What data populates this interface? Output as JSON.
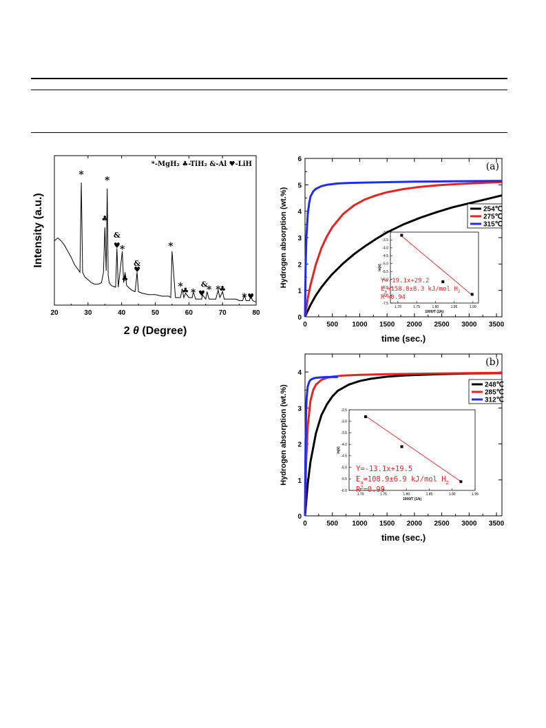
{
  "chart_data": [
    {
      "id": "xrd",
      "type": "line",
      "xlabel_prefix": "2",
      "xlabel_theta": "θ",
      "xlabel_suffix": "(Degree)",
      "ylabel": "Intensity (a.u.)",
      "xlim": [
        20,
        80
      ],
      "ylim": [
        0,
        100
      ],
      "xticks": [
        20,
        30,
        40,
        50,
        60,
        70,
        80
      ],
      "legend_text": "*-MgH₂ ♣-TiH₂ &-Al ♥-LiH",
      "series": [
        {
          "x": [
            20,
            21,
            22,
            23,
            24,
            25,
            26,
            27,
            27.6,
            28,
            28.4,
            29,
            30,
            31,
            32,
            33,
            34,
            34.6,
            35,
            35.4,
            35.7,
            36,
            36.3,
            37,
            38.2,
            38.6,
            39,
            40.2,
            40.6,
            41,
            41.5,
            42,
            43,
            44,
            44.6,
            45,
            46,
            48,
            50,
            52,
            54,
            54.6,
            55,
            56,
            57.5,
            58,
            58.5,
            59,
            60,
            61,
            61.3,
            62,
            63,
            63.8,
            64,
            65,
            65.4,
            66,
            67,
            68,
            68.7,
            69.2,
            70,
            70.5,
            71,
            72,
            73,
            74,
            75,
            76,
            76.5,
            77,
            78,
            78.4,
            79,
            80
          ],
          "y": [
            43,
            45,
            43,
            40,
            36,
            32,
            27,
            24,
            22,
            82,
            22,
            19,
            17,
            15,
            14,
            14,
            15,
            22,
            52,
            23,
            78,
            20,
            15,
            13,
            12,
            38,
            12,
            36,
            15,
            22,
            13,
            12,
            10,
            9,
            22,
            9,
            8,
            7,
            7,
            6,
            6,
            5,
            36,
            5,
            5,
            11,
            5,
            8,
            5,
            5,
            9,
            4,
            4,
            4,
            7,
            4,
            9,
            4,
            4,
            4,
            10,
            5,
            9,
            4,
            4,
            4,
            4,
            4,
            3,
            3,
            7,
            3,
            3,
            6,
            3,
            2
          ]
        }
      ],
      "annotations": [
        {
          "text": "*",
          "x": 28.0,
          "y": 89
        },
        {
          "text": "*",
          "x": 35.7,
          "y": 85
        },
        {
          "text": "♣",
          "x": 35.0,
          "y": 58
        },
        {
          "text": "&",
          "x": 38.6,
          "y": 47
        },
        {
          "text": "♥",
          "x": 38.6,
          "y": 40
        },
        {
          "text": "*",
          "x": 40.2,
          "y": 39
        },
        {
          "text": "&",
          "x": 44.6,
          "y": 28
        },
        {
          "text": "♥",
          "x": 44.6,
          "y": 24
        },
        {
          "text": "♣",
          "x": 41.0,
          "y": 18
        },
        {
          "text": "*",
          "x": 54.6,
          "y": 41
        },
        {
          "text": "*",
          "x": 57.5,
          "y": 14
        },
        {
          "text": "♣",
          "x": 59.0,
          "y": 10
        },
        {
          "text": "*",
          "x": 61.3,
          "y": 10
        },
        {
          "text": "♥",
          "x": 63.8,
          "y": 8
        },
        {
          "text": "&",
          "x": 64.6,
          "y": 14
        },
        {
          "text": "*",
          "x": 66.0,
          "y": 12
        },
        {
          "text": "*",
          "x": 68.7,
          "y": 12
        },
        {
          "text": "♣",
          "x": 70.0,
          "y": 11
        },
        {
          "text": "*",
          "x": 76.5,
          "y": 7
        },
        {
          "text": "♥",
          "x": 78.4,
          "y": 6
        }
      ]
    },
    {
      "id": "a",
      "type": "line",
      "panel_label": "(a)",
      "xlabel": "time (sec.)",
      "ylabel": "Hydrogen absorption (wt.%)",
      "xlim": [
        0,
        3600
      ],
      "ylim": [
        0,
        6
      ],
      "xticks": [
        0,
        500,
        1000,
        1500,
        2000,
        2500,
        3000,
        3500
      ],
      "yticks": [
        0,
        1,
        2,
        3,
        4,
        5,
        6
      ],
      "legend": "top-right",
      "series": [
        {
          "name": "254℃",
          "color": "#000000",
          "x": [
            0,
            100,
            200,
            300,
            400,
            500,
            700,
            900,
            1100,
            1300,
            1500,
            1800,
            2100,
            2400,
            2700,
            3000,
            3300,
            3600
          ],
          "y": [
            0,
            0.45,
            0.82,
            1.12,
            1.38,
            1.62,
            2.03,
            2.38,
            2.68,
            2.95,
            3.2,
            3.5,
            3.75,
            3.96,
            4.15,
            4.3,
            4.45,
            4.6
          ]
        },
        {
          "name": "275℃",
          "color": "#e8221f",
          "x": [
            0,
            50,
            100,
            200,
            300,
            400,
            500,
            700,
            900,
            1100,
            1300,
            1500,
            1800,
            2100,
            2400,
            2700,
            3000,
            3300,
            3600
          ],
          "y": [
            0,
            0.7,
            1.2,
            2.0,
            2.6,
            3.05,
            3.4,
            3.9,
            4.23,
            4.45,
            4.6,
            4.72,
            4.84,
            4.92,
            4.98,
            5.02,
            5.05,
            5.08,
            5.1
          ]
        },
        {
          "name": "315℃",
          "color": "#1f2bf0",
          "x": [
            0,
            10,
            25,
            50,
            75,
            100,
            150,
            200,
            300,
            400,
            600,
            800,
            1000,
            1500,
            2000,
            2500,
            3000,
            3600
          ],
          "y": [
            0,
            1.8,
            3.0,
            3.9,
            4.3,
            4.55,
            4.75,
            4.85,
            4.95,
            5.0,
            5.05,
            5.07,
            5.08,
            5.1,
            5.12,
            5.13,
            5.14,
            5.15
          ]
        }
      ],
      "inset": {
        "xlim": [
          1.68,
          1.915
        ],
        "ylim": [
          -7.5,
          -3.0
        ],
        "xticks": [
          1.7,
          1.75,
          1.8,
          1.85,
          1.9
        ],
        "xticklabels": [
          "1.70",
          "1.75",
          "1.80",
          "1.85",
          "1.90"
        ],
        "yticks": [
          -3.0,
          -3.5,
          -4.0,
          -4.5,
          -5.0,
          -5.5,
          -6.0,
          -6.5,
          -7.0,
          -7.5
        ],
        "yticklabels": [
          "-3.0",
          "-3.5",
          "-4.0",
          "-4.5",
          "-5.0",
          "-5.5",
          "-6.0",
          "-6.5",
          "-7.0",
          "-7.5"
        ],
        "xlabel": "1000/T (1/k)",
        "ylabel": "ln(k)",
        "points": {
          "x": [
            1.71,
            1.82,
            1.898
          ],
          "y": [
            -3.2,
            -6.15,
            -6.95
          ]
        },
        "fit": {
          "x": [
            1.71,
            1.898
          ],
          "y": [
            -3.25,
            -7.0
          ]
        },
        "text_lines": [
          {
            "pre": "Y=-19.1x+29.2",
            "mid": "",
            "post": ""
          },
          {
            "pre": "E",
            "sub": "a",
            "mid": "=158.8±8.3 kJ/mol H",
            "sub2": "2"
          },
          {
            "pre": "R",
            "sup": "2",
            "mid": "=0.94"
          }
        ]
      }
    },
    {
      "id": "b",
      "type": "line",
      "panel_label": "(b)",
      "xlabel": "time (sec.)",
      "ylabel": "Hydrogen absorption (wt.%)",
      "xlim": [
        0,
        3600
      ],
      "ylim": [
        0,
        4.5
      ],
      "xticks": [
        0,
        500,
        1000,
        1500,
        2000,
        2500,
        3000,
        3500
      ],
      "yticks": [
        0,
        1,
        2,
        3,
        4
      ],
      "legend": "top-right",
      "series": [
        {
          "name": "248℃",
          "color": "#000000",
          "x": [
            0,
            50,
            100,
            200,
            300,
            400,
            500,
            600,
            800,
            1000,
            1200,
            1500,
            1800,
            2100,
            2500,
            3000,
            3600
          ],
          "y": [
            0,
            0.9,
            1.5,
            2.3,
            2.8,
            3.1,
            3.32,
            3.48,
            3.65,
            3.75,
            3.81,
            3.87,
            3.9,
            3.92,
            3.94,
            3.96,
            3.97
          ]
        },
        {
          "name": "285℃",
          "color": "#e8221f",
          "x": [
            0,
            20,
            50,
            100,
            150,
            200,
            300,
            400,
            500,
            700,
            1000,
            1500,
            2000,
            2500,
            3000,
            3600
          ],
          "y": [
            0,
            1.5,
            2.5,
            3.2,
            3.5,
            3.65,
            3.78,
            3.84,
            3.87,
            3.9,
            3.92,
            3.94,
            3.95,
            3.96,
            3.97,
            3.98
          ]
        },
        {
          "name": "312℃",
          "color": "#1f2bf0",
          "x": [
            0,
            5,
            10,
            20,
            30,
            50,
            75,
            100,
            150,
            200,
            300,
            400,
            500,
            600
          ],
          "y": [
            0,
            1.2,
            2.0,
            2.9,
            3.3,
            3.6,
            3.72,
            3.78,
            3.82,
            3.84,
            3.85,
            3.86,
            3.86,
            3.86
          ]
        }
      ],
      "inset": {
        "xlim": [
          1.675,
          1.95
        ],
        "ylim": [
          -6.0,
          -2.5
        ],
        "xticks": [
          1.7,
          1.75,
          1.8,
          1.85,
          1.9,
          1.95
        ],
        "xticklabels": [
          "1.70",
          "1.75",
          "1.80",
          "1.85",
          "1.90",
          "1.95"
        ],
        "yticks": [
          -2.5,
          -3.0,
          -3.5,
          -4.0,
          -4.5,
          -5.0,
          -5.5,
          -6.0
        ],
        "yticklabels": [
          "-2.5",
          "-3.0",
          "-3.5",
          "-4.0",
          "-4.5",
          "-5.0",
          "-5.5",
          "-6.0"
        ],
        "xlabel": "1000/T (1/k)",
        "ylabel": "ln(k)",
        "points": {
          "x": [
            1.711,
            1.79,
            1.919
          ],
          "y": [
            -2.8,
            -4.1,
            -5.62
          ]
        },
        "fit": {
          "x": [
            1.711,
            1.919
          ],
          "y": [
            -2.77,
            -5.62
          ]
        },
        "text_lines": [
          {
            "pre": "Y=-13.1x+19.5",
            "mid": "",
            "post": ""
          },
          {
            "pre": "E",
            "sub": "a",
            "mid": "=108.9±6.9 kJ/mol H",
            "sub2": "2"
          },
          {
            "pre": "R",
            "sup": "2",
            "mid": "=0.99"
          }
        ]
      }
    }
  ]
}
